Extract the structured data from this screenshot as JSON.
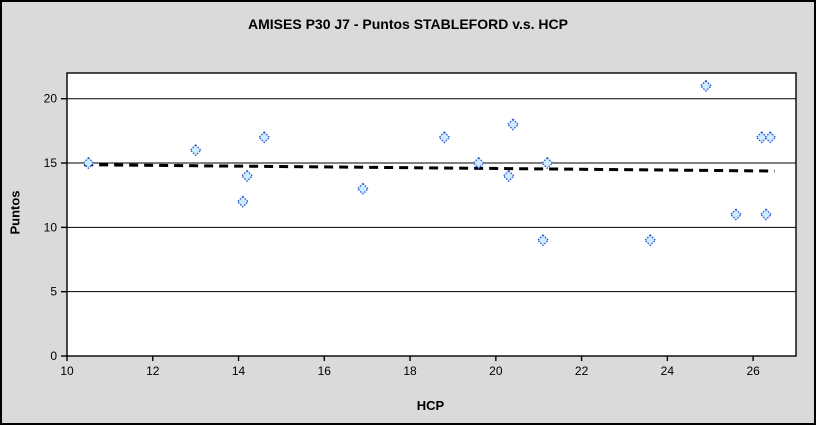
{
  "window": {
    "background_color": "#DADADA",
    "border_color": "#000000"
  },
  "chart_data": {
    "type": "scatter",
    "title": "AMISES P30 J7 - Puntos STABLEFORD v.s. HCP",
    "xlabel": "HCP",
    "ylabel": "Puntos",
    "xlim": [
      10,
      27
    ],
    "ylim": [
      0,
      22
    ],
    "x_ticks": [
      10,
      12,
      14,
      16,
      18,
      20,
      22,
      24,
      26
    ],
    "y_ticks": [
      0,
      5,
      10,
      15,
      20
    ],
    "grid": "horizontal-only",
    "legend_position": "none",
    "series": [
      {
        "name": "Puntos STABLEFORD",
        "marker": "diamond",
        "points": [
          [
            10.5,
            15
          ],
          [
            13.0,
            16
          ],
          [
            14.1,
            12
          ],
          [
            14.2,
            14
          ],
          [
            14.6,
            17
          ],
          [
            16.9,
            13
          ],
          [
            18.8,
            17
          ],
          [
            19.6,
            15
          ],
          [
            20.3,
            14
          ],
          [
            20.4,
            18
          ],
          [
            21.1,
            9
          ],
          [
            21.2,
            15
          ],
          [
            23.6,
            9
          ],
          [
            24.9,
            21
          ],
          [
            25.6,
            11
          ],
          [
            26.2,
            17
          ],
          [
            26.3,
            11
          ],
          [
            26.4,
            17
          ]
        ]
      }
    ],
    "trendline": {
      "style": "dashed",
      "x1": 10.4,
      "y1": 14.87,
      "x2": 26.5,
      "y2": 14.38
    },
    "colors": {
      "plot_background": "#FFFFFF",
      "grid_line": "#000000",
      "axis_line": "#000000",
      "marker_fill": "#CCECFF",
      "marker_border": "#3355CC",
      "trendline": "#000000",
      "title_text": "#000000",
      "tick_text": "#000000"
    }
  }
}
